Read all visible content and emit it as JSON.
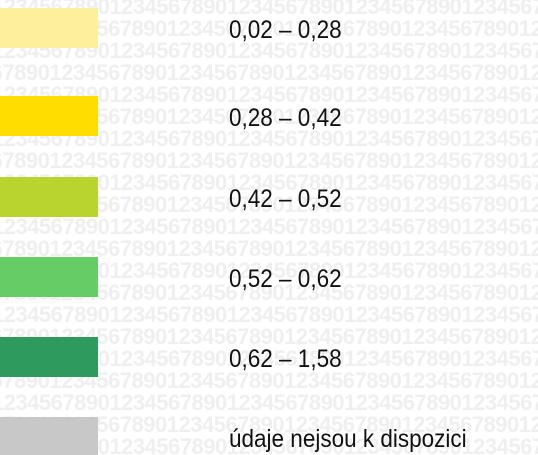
{
  "watermark": "1234567890",
  "legend": {
    "items": [
      {
        "label": "0,02 – 0,28",
        "color": "#fcf09c"
      },
      {
        "label": "0,28 – 0,42",
        "color": "#ffdd00"
      },
      {
        "label": "0,42 – 0,52",
        "color": "#b9d42f"
      },
      {
        "label": "0,52 – 0,62",
        "color": "#66cd66"
      },
      {
        "label": "0,62 – 1,58",
        "color": "#2e9a5e"
      },
      {
        "label": "údaje nejsou k dispozici",
        "color": "#c8c8c8"
      }
    ]
  }
}
